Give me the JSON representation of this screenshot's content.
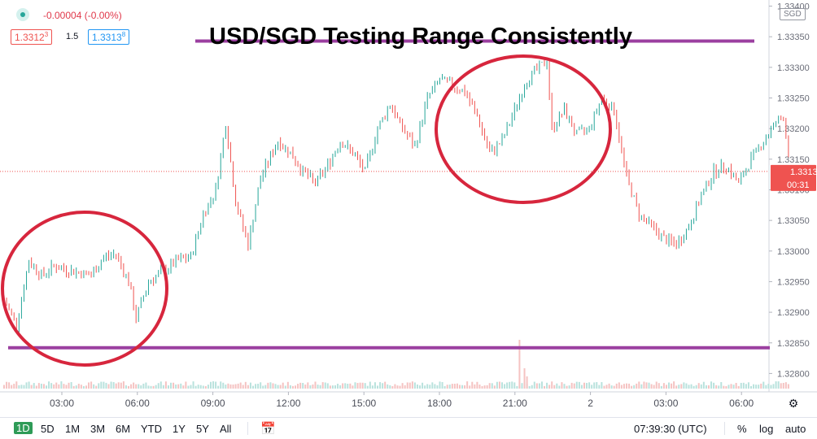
{
  "header": {
    "change": "-0.00004 (-0.00%)",
    "bid": "1.3312",
    "bid_sup": "3",
    "spread": "1.5",
    "ask": "1.3313",
    "ask_sup": "8",
    "currency": "SGD"
  },
  "toolbar": {
    "ranges": [
      "1D",
      "5D",
      "1M",
      "3M",
      "6M",
      "YTD",
      "1Y",
      "5Y",
      "All"
    ],
    "active_range": "1D",
    "time": "07:39:30 (UTC)",
    "percent": "%",
    "log": "log",
    "auto": "auto"
  },
  "price_badge": {
    "price": "1.33130",
    "countdown": "00:31"
  },
  "colors": {
    "up": "#26a69a",
    "down": "#ef5350",
    "annotation_line": "#9b3fa0",
    "circle": "#d7263d",
    "badge": "#ef5350"
  },
  "chart_data": {
    "type": "candlestick",
    "title": "USD/SGD Testing Range Consistently",
    "x_ticks": [
      "03:00",
      "06:00",
      "09:00",
      "12:00",
      "15:00",
      "18:00",
      "21:00",
      "2",
      "03:00",
      "06:00"
    ],
    "y_ticks": [
      "1.33400",
      "1.33350",
      "1.33300",
      "1.33250",
      "1.33200",
      "1.33150",
      "1.33100",
      "1.33050",
      "1.33000",
      "1.32950",
      "1.32900",
      "1.32850",
      "1.32800"
    ],
    "ylim": [
      1.3277,
      1.3341
    ],
    "resistance": 1.33343,
    "support": 1.32842,
    "last_price": 1.3313,
    "close_path": [
      [
        0.0,
        1.3292
      ],
      [
        0.5,
        1.3288
      ],
      [
        1.0,
        1.32985
      ],
      [
        1.5,
        1.3296
      ],
      [
        2.0,
        1.32975
      ],
      [
        2.5,
        1.3297
      ],
      [
        3.0,
        1.32965
      ],
      [
        3.5,
        1.3296
      ],
      [
        4.0,
        1.3299
      ],
      [
        4.5,
        1.32995
      ],
      [
        5.0,
        1.3295
      ],
      [
        5.3,
        1.3289
      ],
      [
        5.8,
        1.3295
      ],
      [
        6.5,
        1.3297
      ],
      [
        7.0,
        1.32985
      ],
      [
        7.5,
        1.3299
      ],
      [
        8.0,
        1.3306
      ],
      [
        8.5,
        1.331
      ],
      [
        8.9,
        1.3321
      ],
      [
        9.3,
        1.3308
      ],
      [
        9.8,
        1.3301
      ],
      [
        10.3,
        1.3312
      ],
      [
        11.0,
        1.3318
      ],
      [
        11.5,
        1.3316
      ],
      [
        12.0,
        1.3313
      ],
      [
        12.5,
        1.3311
      ],
      [
        13.0,
        1.3314
      ],
      [
        13.5,
        1.3318
      ],
      [
        14.0,
        1.3316
      ],
      [
        14.5,
        1.3313
      ],
      [
        15.0,
        1.332
      ],
      [
        15.5,
        1.3324
      ],
      [
        16.0,
        1.332
      ],
      [
        16.5,
        1.3317
      ],
      [
        17.0,
        1.3325
      ],
      [
        17.5,
        1.3328
      ],
      [
        18.0,
        1.3327
      ],
      [
        18.5,
        1.3326
      ],
      [
        19.0,
        1.3322
      ],
      [
        19.5,
        1.3316
      ],
      [
        20.0,
        1.3318
      ],
      [
        20.5,
        1.3323
      ],
      [
        21.0,
        1.3328
      ],
      [
        21.5,
        1.333
      ],
      [
        21.8,
        1.3331
      ],
      [
        22.0,
        1.332
      ],
      [
        22.5,
        1.3323
      ],
      [
        23.0,
        1.3319
      ],
      [
        23.5,
        1.332
      ],
      [
        24.0,
        1.3325
      ],
      [
        24.5,
        1.3323
      ],
      [
        25.0,
        1.3312
      ],
      [
        25.5,
        1.3306
      ],
      [
        26.0,
        1.3304
      ],
      [
        26.5,
        1.3302
      ],
      [
        27.0,
        1.3301
      ],
      [
        27.5,
        1.3304
      ],
      [
        28.0,
        1.3309
      ],
      [
        28.5,
        1.3313
      ],
      [
        29.0,
        1.3314
      ],
      [
        29.5,
        1.3311
      ],
      [
        30.0,
        1.3315
      ],
      [
        30.5,
        1.3318
      ],
      [
        31.0,
        1.3321
      ],
      [
        31.3,
        1.3322
      ],
      [
        31.6,
        1.3313
      ]
    ]
  }
}
